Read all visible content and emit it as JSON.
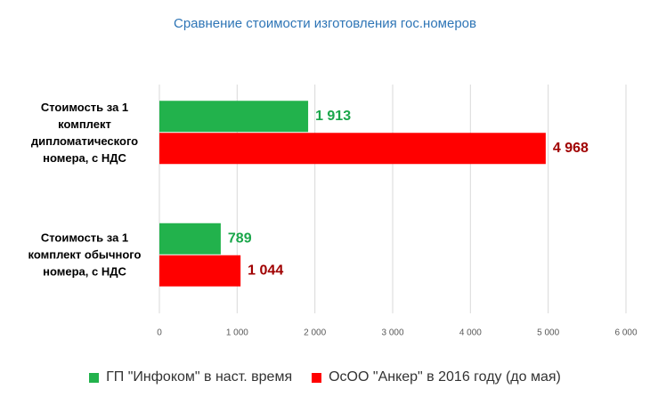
{
  "chart_data": {
    "type": "hbar",
    "title": "Сравнение стоимости изготовления гос.номеров",
    "categories": [
      "Стоимость за 1 комплект дипломатического номера, с НДС",
      "Стоимость за 1 комплект обычного номера, с НДС"
    ],
    "series": [
      {
        "name": "ГП \"Инфоком\" в наст. время",
        "color": "#22b24c",
        "label_color": "#1aa64a",
        "values": [
          1913,
          789
        ],
        "value_labels": [
          "1 913",
          "789"
        ]
      },
      {
        "name": "ОсОО \"Анкер\" в 2016 году (до мая)",
        "color": "#ff0000",
        "label_color": "#a00000",
        "values": [
          4968,
          1044
        ],
        "value_labels": [
          "4 968",
          "1 044"
        ]
      }
    ],
    "xlim": [
      0,
      6000
    ],
    "xticks": [
      0,
      {
        "value": 1000,
        "label": "1 000"
      },
      {
        "value": 2000,
        "label": "2 000"
      },
      {
        "value": 3000,
        "label": "3 000"
      },
      {
        "value": 4000,
        "label": "4 000"
      },
      {
        "value": 5000,
        "label": "5 000"
      },
      {
        "value": 6000,
        "label": "6 000"
      }
    ],
    "grid": true,
    "legend": "bottom"
  }
}
